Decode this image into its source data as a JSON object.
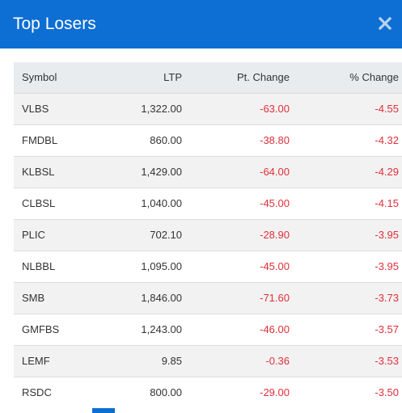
{
  "modal": {
    "title": "Top Losers",
    "close_icon": "close-icon"
  },
  "table": {
    "headers": {
      "symbol": "Symbol",
      "ltp": "LTP",
      "pt_change": "Pt. Change",
      "pct_change": "% Change"
    },
    "rows": [
      {
        "symbol": "VLBS",
        "ltp": "1,322.00",
        "pt_change": "-63.00",
        "pct_change": "-4.55"
      },
      {
        "symbol": "FMDBL",
        "ltp": "860.00",
        "pt_change": "-38.80",
        "pct_change": "-4.32"
      },
      {
        "symbol": "KLBSL",
        "ltp": "1,429.00",
        "pt_change": "-64.00",
        "pct_change": "-4.29"
      },
      {
        "symbol": "CLBSL",
        "ltp": "1,040.00",
        "pt_change": "-45.00",
        "pct_change": "-4.15"
      },
      {
        "symbol": "PLIC",
        "ltp": "702.10",
        "pt_change": "-28.90",
        "pct_change": "-3.95"
      },
      {
        "symbol": "NLBBL",
        "ltp": "1,095.00",
        "pt_change": "-45.00",
        "pct_change": "-3.95"
      },
      {
        "symbol": "SMB",
        "ltp": "1,846.00",
        "pt_change": "-71.60",
        "pct_change": "-3.73"
      },
      {
        "symbol": "GMFBS",
        "ltp": "1,243.00",
        "pt_change": "-46.00",
        "pct_change": "-3.57"
      },
      {
        "symbol": "LEMF",
        "ltp": "9.85",
        "pt_change": "-0.36",
        "pct_change": "-3.53"
      },
      {
        "symbol": "RSDC",
        "ltp": "800.00",
        "pt_change": "-29.00",
        "pct_change": "-3.50"
      }
    ]
  },
  "colors": {
    "header_blue": "#0d6ed3",
    "negative_red": "#e0303a",
    "table_header_bg": "#e9ecef"
  }
}
